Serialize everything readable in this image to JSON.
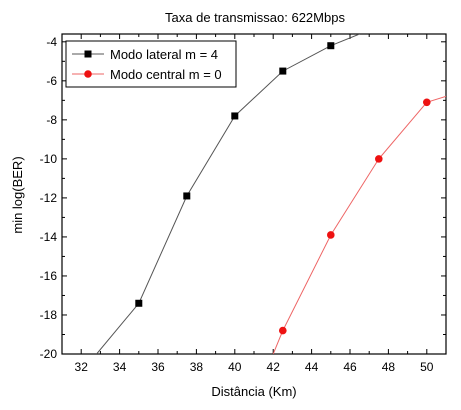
{
  "chart_data": {
    "type": "line",
    "title": "Taxa de transmissao: 622Mbps",
    "xlabel": "Distância (Km)",
    "ylabel": "min log(BER)",
    "xlim": [
      31,
      51
    ],
    "ylim": [
      -20,
      -3.6
    ],
    "x_ticks": [
      32,
      34,
      36,
      38,
      40,
      42,
      44,
      46,
      48,
      50
    ],
    "y_ticks": [
      -20,
      -18,
      -16,
      -14,
      -12,
      -10,
      -8,
      -6,
      -4
    ],
    "grid": false,
    "legend_position": "top-left",
    "series": [
      {
        "name": "Modo lateral m = 4",
        "color": "#000000",
        "marker": "square",
        "line_color": "#555555",
        "x": [
          32.8,
          35,
          37.5,
          40,
          42.5,
          45,
          46.5
        ],
        "y": [
          -20,
          -17.4,
          -11.9,
          -7.8,
          -5.5,
          -4.2,
          -3.6
        ],
        "markers_x": [
          35,
          37.5,
          40,
          42.5,
          45
        ],
        "markers_y": [
          -17.4,
          -11.9,
          -7.8,
          -5.5,
          -4.2
        ]
      },
      {
        "name": "Modo central m = 0",
        "color": "#ee1111",
        "marker": "circle",
        "line_color": "#ee6666",
        "x": [
          42,
          42.5,
          45,
          47.5,
          50,
          51
        ],
        "y": [
          -20,
          -18.8,
          -13.9,
          -10,
          -7.1,
          -6.8
        ],
        "markers_x": [
          42.5,
          45,
          47.5,
          50
        ],
        "markers_y": [
          -18.8,
          -13.9,
          -10,
          -7.1
        ]
      }
    ]
  }
}
